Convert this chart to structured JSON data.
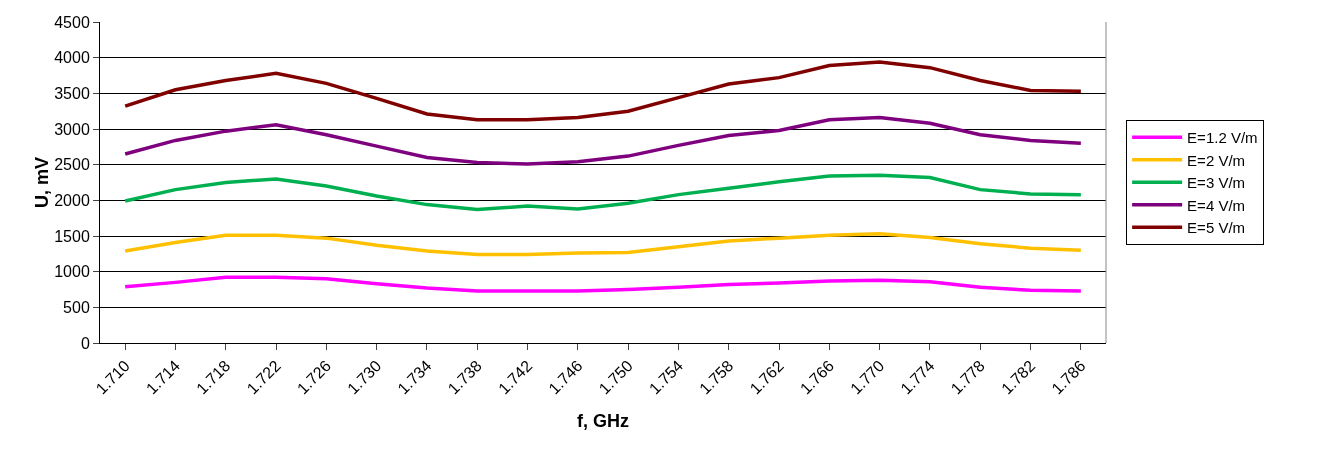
{
  "chart_data": {
    "type": "line",
    "xlabel": "f, GHz",
    "ylabel": "U, mV",
    "categories": [
      "1.710",
      "1.714",
      "1.718",
      "1.722",
      "1.726",
      "1.730",
      "1.734",
      "1.738",
      "1.742",
      "1.746",
      "1.750",
      "1.754",
      "1.758",
      "1.762",
      "1.766",
      "1.770",
      "1.774",
      "1.778",
      "1.782",
      "1.786"
    ],
    "series": [
      {
        "name": "E=1.2 V/m",
        "color": "#ff00ff",
        "values": [
          790,
          850,
          920,
          920,
          900,
          830,
          770,
          730,
          730,
          730,
          750,
          780,
          820,
          840,
          870,
          880,
          860,
          780,
          740,
          730
        ]
      },
      {
        "name": "E=2 V/m",
        "color": "#ffc000",
        "values": [
          1290,
          1410,
          1510,
          1510,
          1470,
          1370,
          1290,
          1240,
          1240,
          1260,
          1270,
          1350,
          1430,
          1470,
          1510,
          1530,
          1480,
          1390,
          1330,
          1300
        ]
      },
      {
        "name": "E=3 V/m",
        "color": "#00b050",
        "values": [
          1990,
          2150,
          2250,
          2300,
          2200,
          2060,
          1940,
          1870,
          1920,
          1880,
          1960,
          2080,
          2170,
          2260,
          2340,
          2350,
          2320,
          2150,
          2090,
          2080
        ]
      },
      {
        "name": "E=4 V/m",
        "color": "#7f007f",
        "values": [
          2650,
          2840,
          2970,
          3060,
          2920,
          2760,
          2600,
          2530,
          2510,
          2540,
          2620,
          2770,
          2910,
          2980,
          3130,
          3160,
          3080,
          2920,
          2840,
          2800
        ]
      },
      {
        "name": "E=5 V/m",
        "color": "#800000",
        "values": [
          3320,
          3550,
          3680,
          3780,
          3640,
          3430,
          3210,
          3130,
          3130,
          3160,
          3250,
          3440,
          3630,
          3720,
          3890,
          3940,
          3860,
          3680,
          3540,
          3530
        ]
      }
    ],
    "ylim": [
      0,
      4500
    ],
    "yticks": [
      0,
      500,
      1000,
      1500,
      2000,
      2500,
      3000,
      3500,
      4000,
      4500
    ],
    "grid": "y",
    "legend": "right",
    "marker": "none",
    "line_style": "solid"
  }
}
